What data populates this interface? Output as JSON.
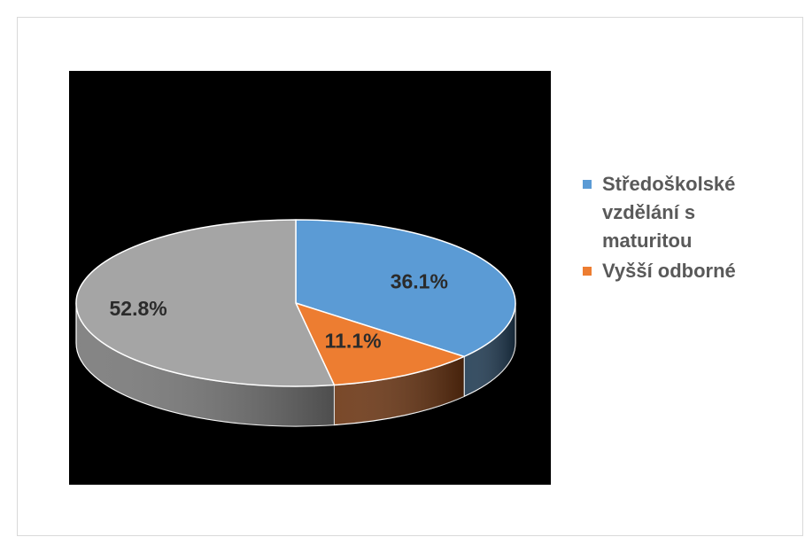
{
  "chart_data": {
    "type": "pie",
    "variant": "3d",
    "title": "",
    "categories": [
      "Středoškolské vzdělání s maturitou",
      "Vyšší odborné",
      ""
    ],
    "values": [
      36.1,
      11.1,
      52.8
    ],
    "value_labels": [
      "36.1%",
      "11.1%",
      "52.8%"
    ],
    "colors": [
      "#5b9bd5",
      "#ed7d31",
      "#a5a5a5"
    ],
    "side_colors": [
      "#1f3a52",
      "#6b3411",
      "#777777"
    ],
    "legend": {
      "placement": "right",
      "entries": [
        {
          "label": "Středoškolské vzdělání s maturitou",
          "color": "#5b9bd5"
        },
        {
          "label": "Vyšší odborné",
          "color": "#ed7d31"
        }
      ]
    },
    "plot_background": "#000000"
  }
}
